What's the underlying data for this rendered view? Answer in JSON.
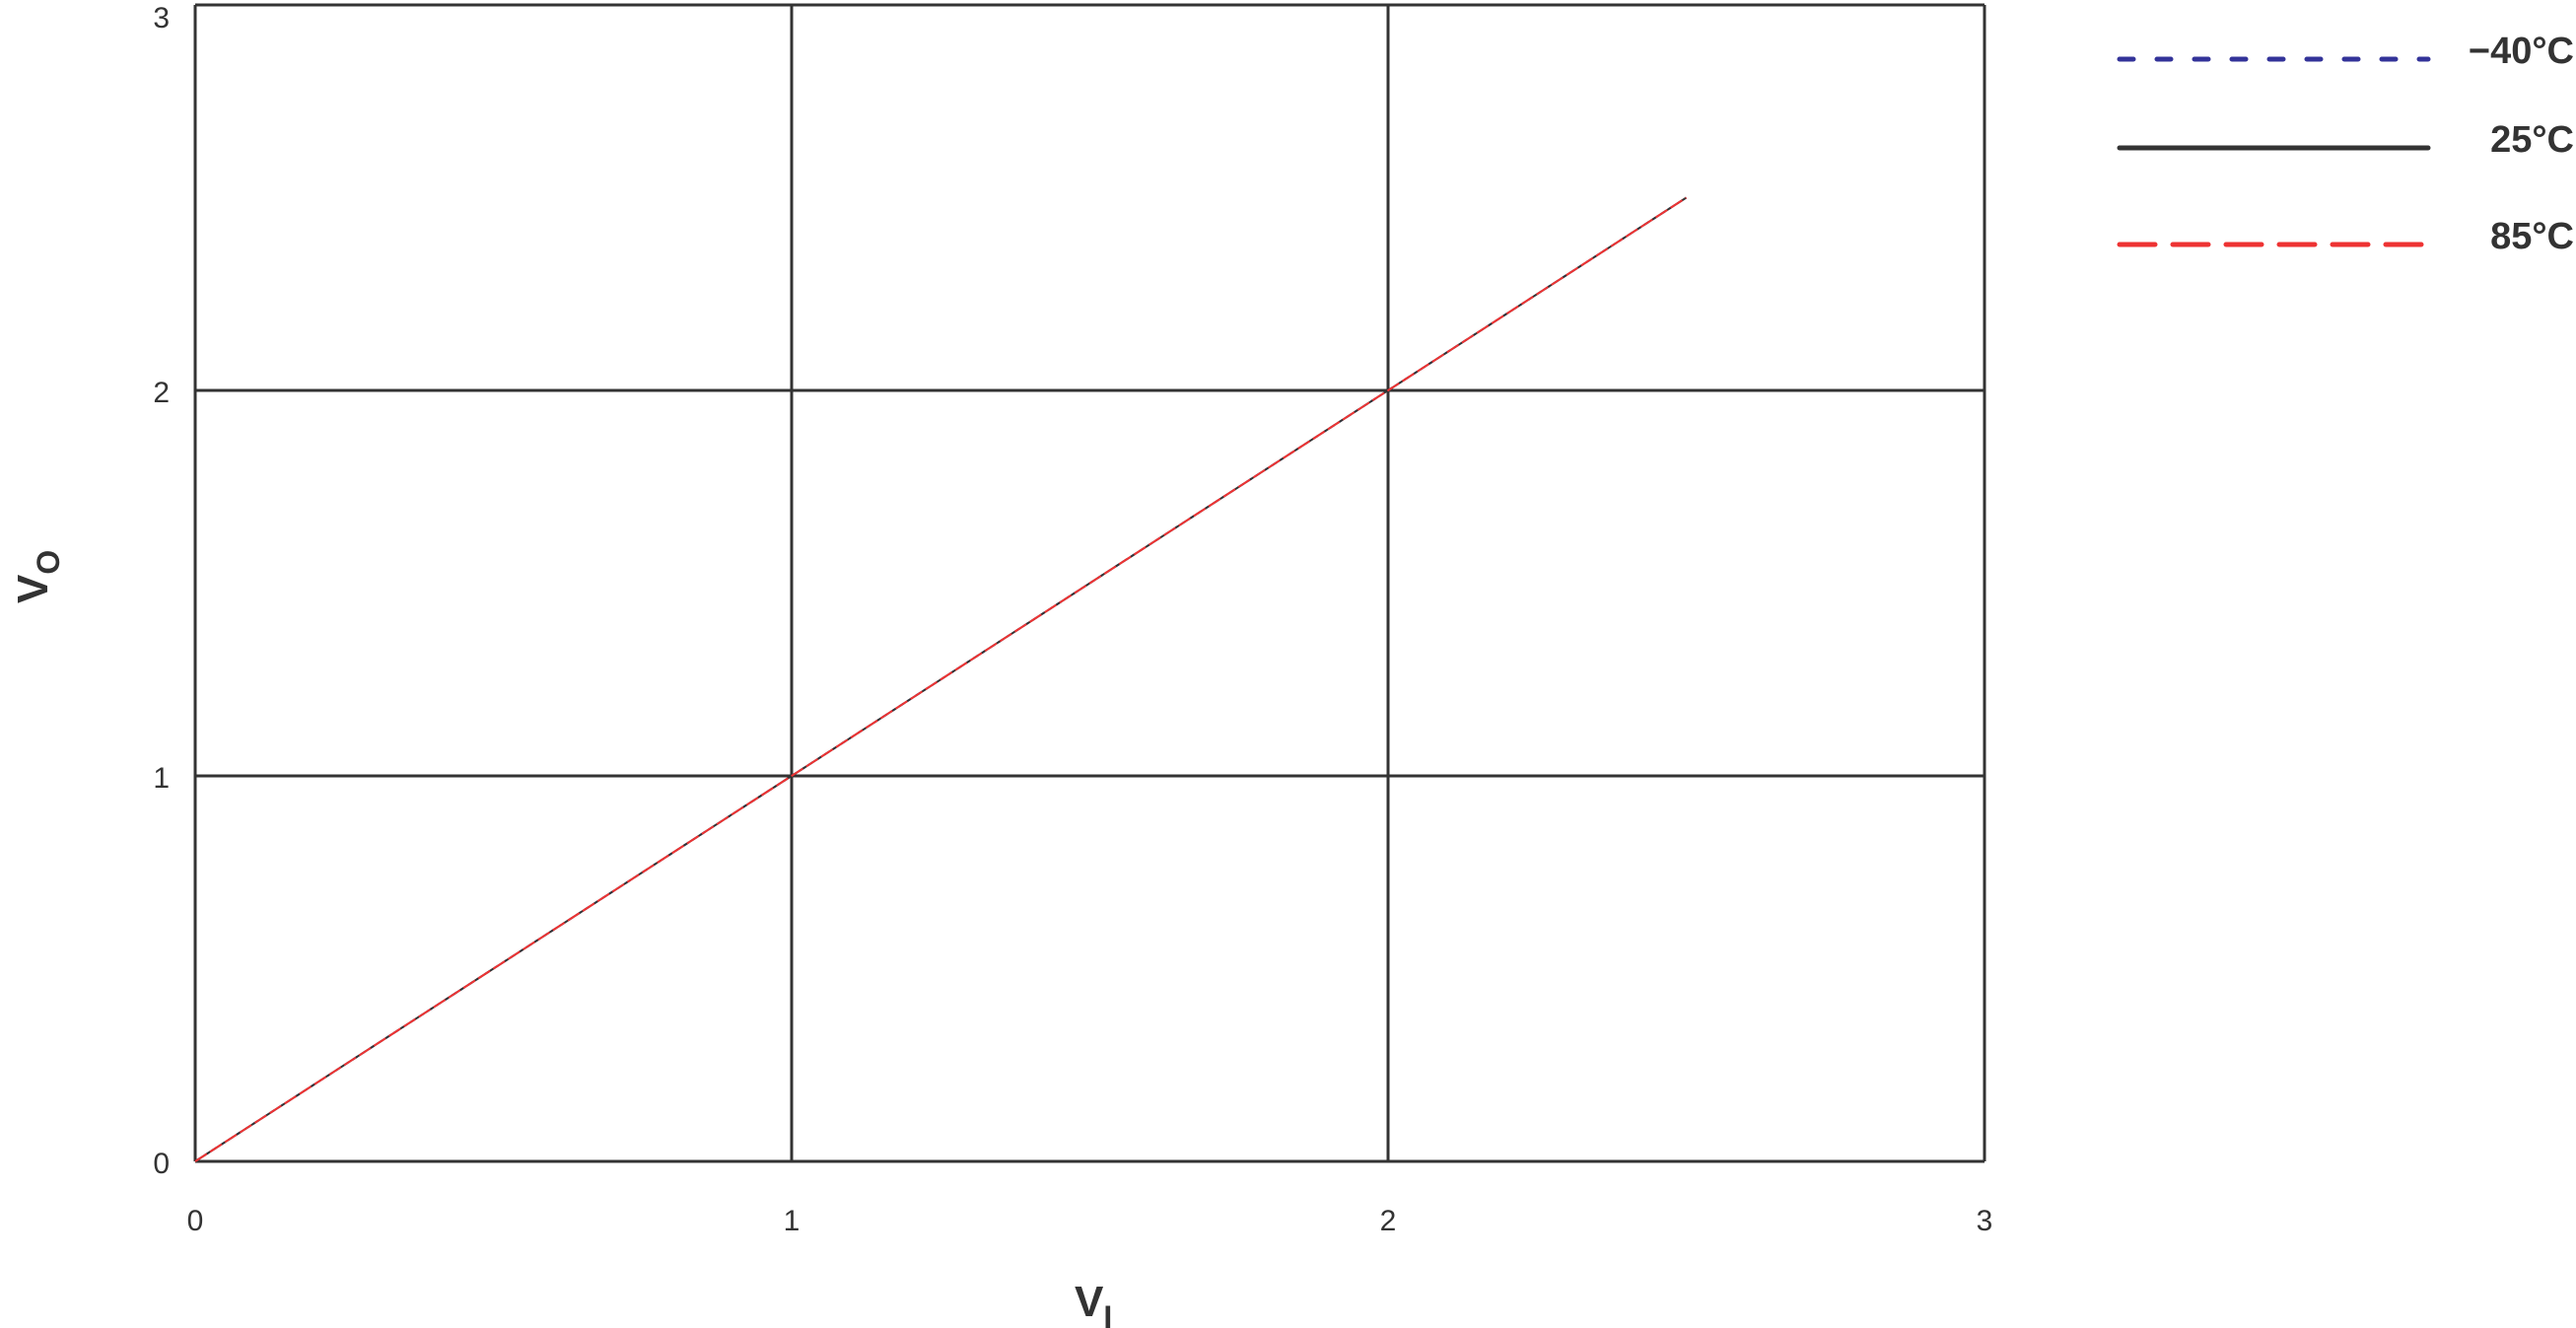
{
  "chart_data": {
    "type": "line",
    "xlabel": "V",
    "xlabel_sub": "I",
    "ylabel": "V",
    "ylabel_sub": "O",
    "xlim": [
      0,
      3
    ],
    "ylim": [
      0,
      3
    ],
    "xticks": [
      "0",
      "1",
      "2",
      "3"
    ],
    "yticks": [
      "0",
      "1",
      "2",
      "3"
    ],
    "grid": true,
    "legend_position": "right",
    "series": [
      {
        "name": "−40°C",
        "color": "#333399",
        "style": "dotted",
        "x": [
          0,
          0.5,
          1,
          1.5,
          2,
          2.5
        ],
        "y": [
          0,
          0.5,
          1,
          1.5,
          2,
          2.5
        ]
      },
      {
        "name": "25°C",
        "color": "#333333",
        "style": "solid",
        "x": [
          0,
          0.5,
          1,
          1.5,
          2,
          2.5
        ],
        "y": [
          0,
          0.5,
          1,
          1.5,
          2,
          2.5
        ]
      },
      {
        "name": "85°C",
        "color": "#ee3333",
        "style": "dashed",
        "x": [
          0,
          0.5,
          1,
          1.5,
          2,
          2.5
        ],
        "y": [
          0,
          0.5,
          1,
          1.5,
          2,
          2.5
        ]
      }
    ]
  }
}
